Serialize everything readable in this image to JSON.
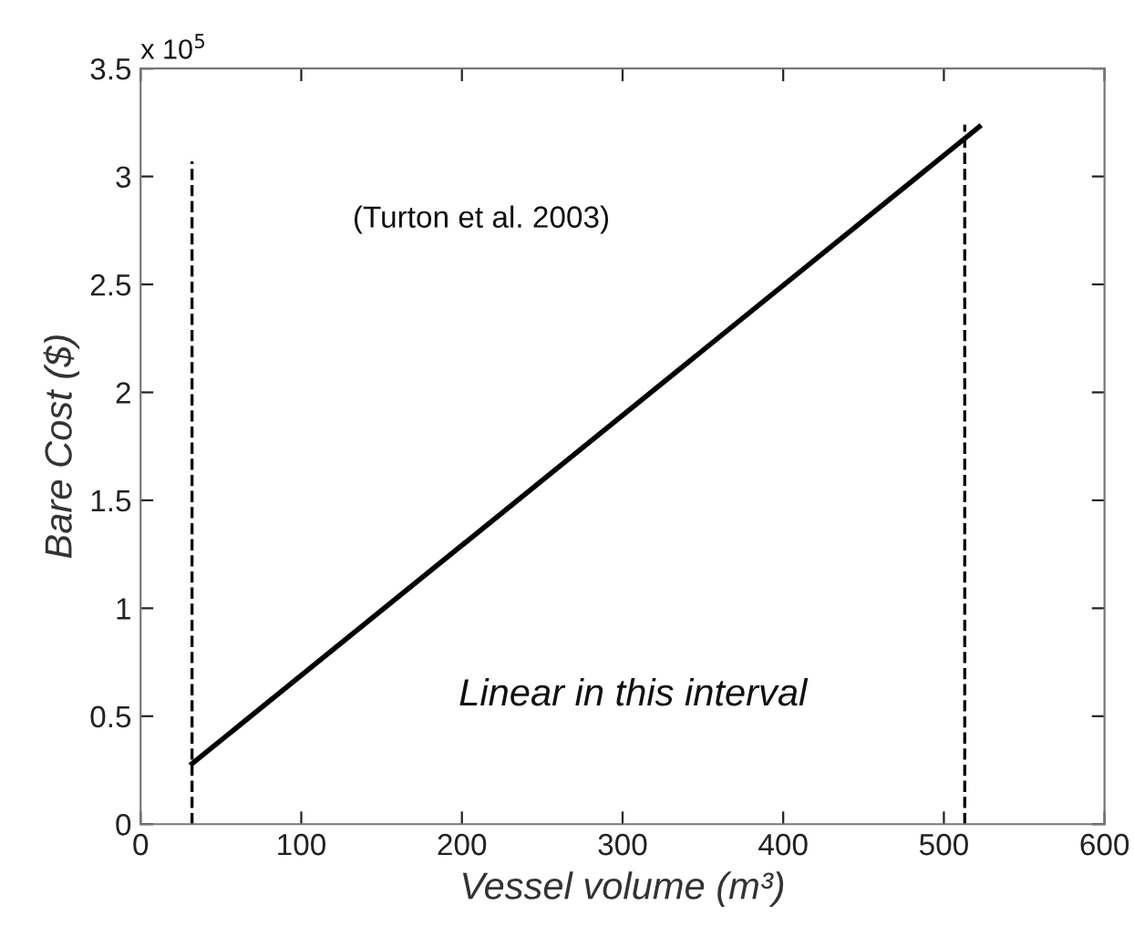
{
  "chart_data": {
    "type": "line",
    "xlabel": "Vessel volume (m³)",
    "ylabel": "Bare Cost ($)",
    "series": [
      {
        "color": "#000000",
        "x": [
          32,
          522
        ],
        "values": [
          0.28,
          3.23
        ],
        "line_style": "solid"
      },
      {
        "color": "#000000",
        "x": [
          32,
          32
        ],
        "values": [
          0,
          3.07
        ],
        "line_style": "dashed"
      },
      {
        "color": "#000000",
        "x": [
          513,
          513
        ],
        "values": [
          0,
          3.24
        ],
        "line_style": "dashed"
      }
    ],
    "xlim": [
      0,
      600
    ],
    "xticks": [
      0,
      100,
      200,
      300,
      400,
      500,
      600
    ],
    "ylim": [
      0,
      3.5
    ],
    "yticks": [
      0,
      0.5,
      1,
      1.5,
      2,
      2.5,
      3,
      3.5
    ],
    "grid": false,
    "legend": false,
    "marker": "none",
    "annotations": [
      "x 10$^{5}$",
      "(Turton et al. 2003)",
      "Linear in this interval"
    ]
  }
}
